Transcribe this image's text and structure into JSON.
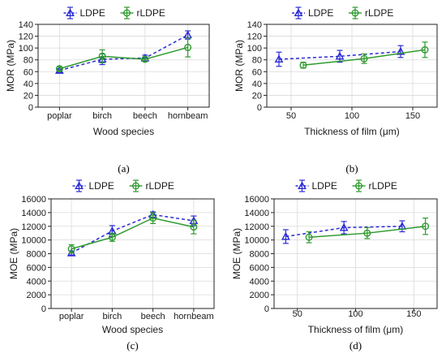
{
  "colors": {
    "LDPE": "#2b2bd6",
    "rLDPE": "#2e9a2e"
  },
  "chart_data": [
    {
      "id": "a",
      "panel_label": "(a)",
      "type": "line",
      "x_type": "category",
      "categories": [
        "poplar",
        "birch",
        "beech",
        "hornbeam"
      ],
      "xlabel": "Wood species",
      "ylabel": "MOR (MPa)",
      "ylim": [
        0,
        140
      ],
      "yticks": [
        0,
        20,
        40,
        60,
        80,
        100,
        120,
        140
      ],
      "grid": true,
      "legend": "top",
      "series": [
        {
          "name": "LDPE",
          "style": "dashed",
          "marker": "triangle",
          "x": [
            0,
            1,
            2,
            3
          ],
          "values": [
            62,
            81,
            83,
            122
          ],
          "errors": [
            3,
            9,
            5,
            7
          ]
        },
        {
          "name": "rLDPE",
          "style": "solid",
          "marker": "circle",
          "x": [
            0,
            1,
            2,
            3
          ],
          "values": [
            65,
            86,
            81,
            101
          ],
          "errors": [
            3,
            11,
            4,
            16
          ]
        }
      ]
    },
    {
      "id": "b",
      "panel_label": "(b)",
      "type": "line",
      "x_type": "numeric",
      "xlim": [
        30,
        170
      ],
      "xticks": [
        50,
        100,
        150
      ],
      "xlabel": "Thickness of film (μm)",
      "ylabel": "MOR (MPa)",
      "ylim": [
        0,
        140
      ],
      "yticks": [
        0,
        20,
        40,
        60,
        80,
        100,
        120,
        140
      ],
      "grid": true,
      "legend": "top",
      "series": [
        {
          "name": "LDPE",
          "style": "dashed",
          "marker": "triangle",
          "x": [
            40,
            90,
            140
          ],
          "values": [
            81,
            86,
            94
          ],
          "errors": [
            12,
            10,
            10
          ]
        },
        {
          "name": "rLDPE",
          "style": "solid",
          "marker": "circle",
          "x": [
            60,
            110,
            160
          ],
          "values": [
            71,
            82,
            97
          ],
          "errors": [
            5,
            8,
            13
          ]
        }
      ]
    },
    {
      "id": "c",
      "panel_label": "(c)",
      "type": "line",
      "x_type": "category",
      "categories": [
        "poplar",
        "birch",
        "beech",
        "hornbeam"
      ],
      "xlabel": "Wood species",
      "ylabel": "MOE (MPa)",
      "ylim": [
        0,
        16000
      ],
      "yticks": [
        0,
        2000,
        4000,
        6000,
        8000,
        10000,
        12000,
        14000,
        16000
      ],
      "grid": true,
      "legend": "top",
      "series": [
        {
          "name": "LDPE",
          "style": "dashed",
          "marker": "triangle",
          "x": [
            0,
            1,
            2,
            3
          ],
          "values": [
            8100,
            11300,
            13700,
            12800
          ],
          "errors": [
            300,
            800,
            400,
            700
          ]
        },
        {
          "name": "rLDPE",
          "style": "solid",
          "marker": "circle",
          "x": [
            0,
            1,
            2,
            3
          ],
          "values": [
            8700,
            10400,
            13200,
            11900
          ],
          "errors": [
            600,
            600,
            800,
            1000
          ]
        }
      ]
    },
    {
      "id": "d",
      "panel_label": "(d)",
      "type": "line",
      "x_type": "numeric",
      "xlim": [
        30,
        170
      ],
      "xticks": [
        50,
        100,
        150
      ],
      "xlabel": "Thickness of film (μm)",
      "ylabel": "MOE (MPa)",
      "ylim": [
        0,
        16000
      ],
      "yticks": [
        0,
        2000,
        4000,
        6000,
        8000,
        10000,
        12000,
        14000,
        16000
      ],
      "grid": true,
      "legend": "top",
      "series": [
        {
          "name": "LDPE",
          "style": "dashed",
          "marker": "triangle",
          "x": [
            40,
            90,
            140
          ],
          "values": [
            10500,
            11800,
            12000
          ],
          "errors": [
            1000,
            900,
            800
          ]
        },
        {
          "name": "rLDPE",
          "style": "solid",
          "marker": "circle",
          "x": [
            60,
            110,
            160
          ],
          "values": [
            10400,
            11000,
            12000
          ],
          "errors": [
            800,
            800,
            1200
          ]
        }
      ]
    }
  ]
}
